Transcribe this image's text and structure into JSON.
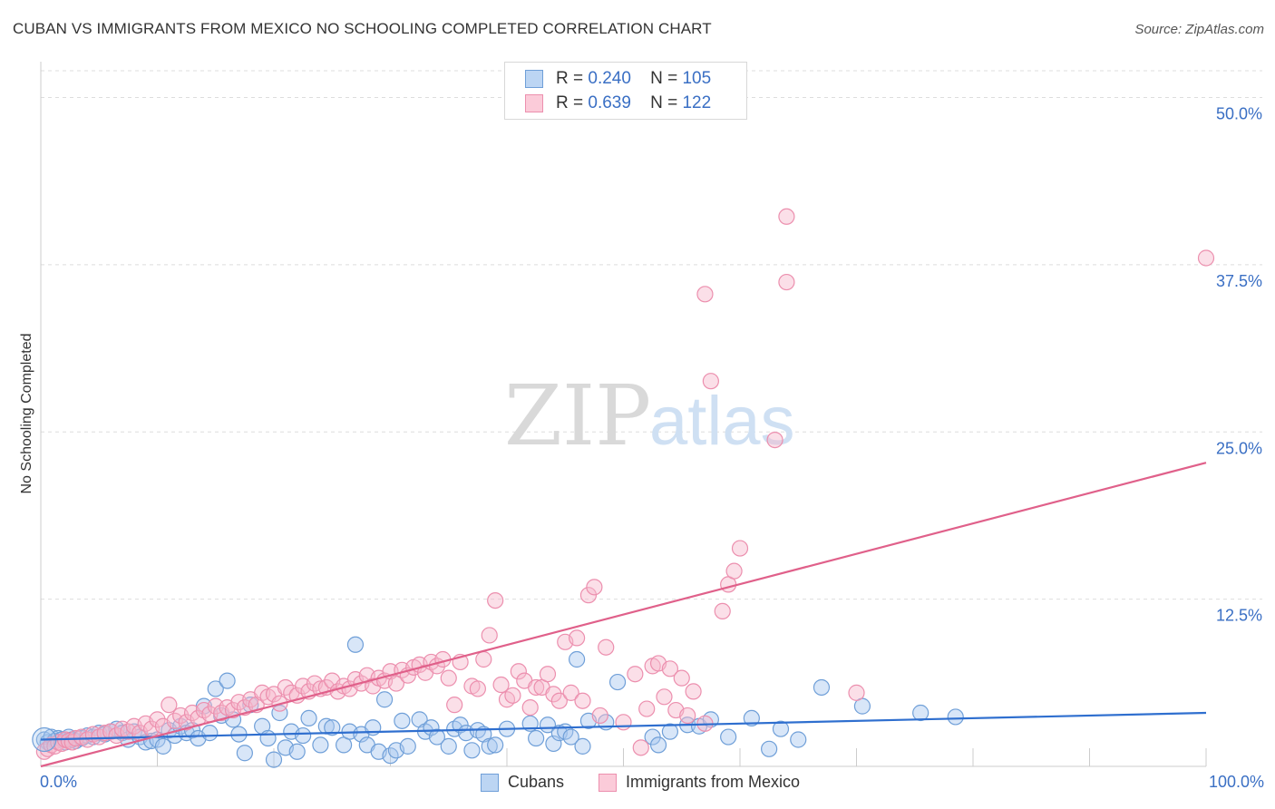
{
  "title": "CUBAN VS IMMIGRANTS FROM MEXICO NO SCHOOLING COMPLETED CORRELATION CHART",
  "source": "Source: ZipAtlas.com",
  "watermark": {
    "zip": "ZIP",
    "atlas": "atlas"
  },
  "legend": {
    "rows": [
      {
        "r_label": "R =",
        "r_value": "0.240",
        "n_label": "N =",
        "n_value": "105"
      },
      {
        "r_label": "R =",
        "r_value": "0.639",
        "n_label": "N =",
        "n_value": "122"
      }
    ]
  },
  "colors": {
    "cubans_fill": "#a8c8ef",
    "cubans_stroke": "#6f9fd8",
    "cubans_line": "#2f6fcf",
    "mexico_fill": "#f6b8cb",
    "mexico_stroke": "#ec8fae",
    "mexico_line": "#e0608a",
    "axis_label": "#3a6fc4",
    "grid": "#dddddd"
  },
  "chart_data": {
    "type": "scatter",
    "title": "CUBAN VS IMMIGRANTS FROM MEXICO NO SCHOOLING COMPLETED CORRELATION CHART",
    "xlabel": "",
    "ylabel": "No Schooling Completed",
    "xlim": [
      0,
      100
    ],
    "ylim": [
      0,
      52
    ],
    "x_tick_labels": [
      "0.0%",
      "100.0%"
    ],
    "y_ticks": [
      12.5,
      25.0,
      37.5,
      50.0
    ],
    "y_tick_labels": [
      "12.5%",
      "25.0%",
      "37.5%",
      "50.0%"
    ],
    "grid": true,
    "series": [
      {
        "name": "Cubans",
        "R": 0.24,
        "N": 105,
        "trend": {
          "x": [
            0,
            100
          ],
          "y": [
            2.0,
            4.0
          ]
        },
        "points": [
          [
            0.3,
            2.0
          ],
          [
            0.6,
            1.8
          ],
          [
            0.9,
            2.2
          ],
          [
            1.2,
            1.9
          ],
          [
            1.5,
            2.1
          ],
          [
            1.8,
            2.0
          ],
          [
            2.1,
            1.8
          ],
          [
            2.4,
            2.2
          ],
          [
            2.7,
            2.0
          ],
          [
            3.0,
            1.9
          ],
          [
            3.5,
            2.1
          ],
          [
            4.0,
            2.3
          ],
          [
            4.5,
            2.2
          ],
          [
            5.0,
            2.5
          ],
          [
            5.5,
            2.4
          ],
          [
            6.0,
            2.6
          ],
          [
            6.5,
            2.8
          ],
          [
            7.0,
            2.5
          ],
          [
            7.5,
            2.0
          ],
          [
            8.0,
            2.6
          ],
          [
            8.5,
            2.2
          ],
          [
            9.0,
            1.8
          ],
          [
            9.5,
            1.9
          ],
          [
            10.0,
            2.0
          ],
          [
            10.5,
            1.5
          ],
          [
            11.0,
            2.7
          ],
          [
            11.5,
            2.3
          ],
          [
            12.0,
            3.0
          ],
          [
            12.5,
            2.5
          ],
          [
            13.0,
            2.7
          ],
          [
            13.5,
            2.1
          ],
          [
            14.0,
            4.5
          ],
          [
            14.5,
            2.5
          ],
          [
            15.0,
            5.8
          ],
          [
            15.5,
            3.8
          ],
          [
            16.0,
            6.4
          ],
          [
            16.5,
            3.5
          ],
          [
            17.0,
            2.4
          ],
          [
            17.5,
            1.0
          ],
          [
            18.0,
            4.6
          ],
          [
            19.0,
            3.0
          ],
          [
            19.5,
            2.1
          ],
          [
            20.0,
            0.5
          ],
          [
            20.5,
            4.0
          ],
          [
            21.0,
            1.4
          ],
          [
            21.5,
            2.6
          ],
          [
            22.0,
            1.1
          ],
          [
            22.5,
            2.3
          ],
          [
            23.0,
            3.6
          ],
          [
            24.0,
            1.6
          ],
          [
            24.5,
            3.0
          ],
          [
            25.0,
            2.9
          ],
          [
            26.0,
            1.6
          ],
          [
            26.5,
            2.6
          ],
          [
            27.0,
            9.1
          ],
          [
            27.5,
            2.4
          ],
          [
            28.0,
            1.6
          ],
          [
            28.5,
            2.9
          ],
          [
            29.0,
            1.1
          ],
          [
            29.5,
            5.0
          ],
          [
            30.0,
            0.8
          ],
          [
            30.5,
            1.2
          ],
          [
            31.0,
            3.4
          ],
          [
            31.5,
            1.5
          ],
          [
            32.5,
            3.5
          ],
          [
            33.0,
            2.6
          ],
          [
            33.5,
            2.9
          ],
          [
            34.0,
            2.2
          ],
          [
            35.0,
            1.5
          ],
          [
            35.5,
            2.8
          ],
          [
            36.0,
            3.1
          ],
          [
            36.5,
            2.5
          ],
          [
            37.0,
            1.2
          ],
          [
            37.5,
            2.7
          ],
          [
            38.0,
            2.4
          ],
          [
            38.5,
            1.5
          ],
          [
            39.0,
            1.6
          ],
          [
            40.0,
            2.8
          ],
          [
            42.0,
            3.2
          ],
          [
            42.5,
            2.1
          ],
          [
            43.5,
            3.1
          ],
          [
            44.0,
            1.7
          ],
          [
            44.5,
            2.5
          ],
          [
            45.0,
            2.6
          ],
          [
            45.5,
            2.2
          ],
          [
            46.0,
            8.0
          ],
          [
            46.5,
            1.5
          ],
          [
            47.0,
            3.4
          ],
          [
            48.5,
            3.3
          ],
          [
            49.5,
            6.3
          ],
          [
            52.5,
            2.2
          ],
          [
            53.0,
            1.6
          ],
          [
            54.0,
            2.6
          ],
          [
            55.5,
            3.1
          ],
          [
            56.5,
            3.0
          ],
          [
            57.5,
            3.5
          ],
          [
            59.0,
            2.2
          ],
          [
            61.0,
            3.6
          ],
          [
            62.5,
            1.3
          ],
          [
            63.5,
            2.8
          ],
          [
            65.0,
            2.0
          ],
          [
            67.0,
            5.9
          ],
          [
            70.5,
            4.5
          ],
          [
            75.5,
            4.0
          ],
          [
            78.5,
            3.7
          ]
        ]
      },
      {
        "name": "Immigrants from Mexico",
        "R": 0.639,
        "N": 122,
        "trend": {
          "x": [
            0,
            100
          ],
          "y": [
            0.0,
            22.7
          ]
        },
        "points": [
          [
            0.3,
            1.1
          ],
          [
            0.6,
            1.3
          ],
          [
            0.9,
            1.6
          ],
          [
            1.2,
            1.5
          ],
          [
            1.5,
            1.8
          ],
          [
            1.8,
            1.7
          ],
          [
            2.1,
            2.0
          ],
          [
            2.4,
            1.9
          ],
          [
            2.7,
            1.8
          ],
          [
            3.0,
            2.1
          ],
          [
            3.5,
            2.2
          ],
          [
            4.0,
            2.0
          ],
          [
            4.5,
            2.4
          ],
          [
            5.0,
            2.2
          ],
          [
            5.5,
            2.5
          ],
          [
            6.0,
            2.6
          ],
          [
            6.5,
            2.3
          ],
          [
            7.0,
            2.8
          ],
          [
            7.5,
            2.6
          ],
          [
            8.0,
            3.0
          ],
          [
            8.5,
            2.5
          ],
          [
            9.0,
            3.2
          ],
          [
            9.5,
            2.8
          ],
          [
            10.0,
            3.5
          ],
          [
            10.5,
            3.0
          ],
          [
            11.0,
            4.6
          ],
          [
            11.5,
            3.4
          ],
          [
            12.0,
            3.8
          ],
          [
            12.5,
            3.3
          ],
          [
            13.0,
            4.0
          ],
          [
            13.5,
            3.6
          ],
          [
            14.0,
            4.2
          ],
          [
            14.5,
            3.9
          ],
          [
            15.0,
            4.5
          ],
          [
            15.5,
            4.0
          ],
          [
            16.0,
            4.4
          ],
          [
            16.5,
            4.2
          ],
          [
            17.0,
            4.8
          ],
          [
            17.5,
            4.4
          ],
          [
            18.0,
            5.0
          ],
          [
            18.5,
            4.6
          ],
          [
            19.0,
            5.5
          ],
          [
            19.5,
            5.2
          ],
          [
            20.0,
            5.4
          ],
          [
            20.5,
            4.7
          ],
          [
            21.0,
            5.9
          ],
          [
            21.5,
            5.5
          ],
          [
            22.0,
            5.3
          ],
          [
            22.5,
            6.0
          ],
          [
            23.0,
            5.6
          ],
          [
            23.5,
            6.2
          ],
          [
            24.0,
            5.8
          ],
          [
            24.5,
            5.9
          ],
          [
            25.0,
            6.4
          ],
          [
            25.5,
            5.6
          ],
          [
            26.0,
            6.0
          ],
          [
            26.5,
            5.8
          ],
          [
            27.0,
            6.5
          ],
          [
            27.5,
            6.2
          ],
          [
            28.0,
            6.8
          ],
          [
            28.5,
            6.0
          ],
          [
            29.0,
            6.6
          ],
          [
            29.5,
            6.4
          ],
          [
            30.0,
            7.1
          ],
          [
            30.5,
            6.2
          ],
          [
            31.0,
            7.2
          ],
          [
            31.5,
            6.8
          ],
          [
            32.0,
            7.4
          ],
          [
            32.5,
            7.6
          ],
          [
            33.0,
            7.0
          ],
          [
            33.5,
            7.8
          ],
          [
            34.0,
            7.5
          ],
          [
            34.5,
            8.0
          ],
          [
            35.0,
            6.6
          ],
          [
            35.5,
            4.6
          ],
          [
            36.0,
            7.8
          ],
          [
            37.0,
            6.0
          ],
          [
            37.5,
            5.8
          ],
          [
            38.0,
            8.0
          ],
          [
            38.5,
            9.8
          ],
          [
            39.0,
            12.4
          ],
          [
            39.5,
            6.1
          ],
          [
            40.0,
            5.0
          ],
          [
            40.5,
            5.3
          ],
          [
            41.0,
            7.1
          ],
          [
            41.5,
            6.4
          ],
          [
            42.0,
            4.4
          ],
          [
            42.5,
            5.9
          ],
          [
            43.0,
            5.9
          ],
          [
            43.5,
            6.9
          ],
          [
            44.0,
            5.4
          ],
          [
            44.5,
            4.9
          ],
          [
            45.0,
            9.3
          ],
          [
            45.5,
            5.5
          ],
          [
            46.0,
            9.6
          ],
          [
            46.5,
            4.9
          ],
          [
            47.0,
            12.8
          ],
          [
            47.5,
            13.4
          ],
          [
            48.0,
            3.8
          ],
          [
            48.5,
            8.9
          ],
          [
            50.0,
            3.3
          ],
          [
            51.0,
            6.9
          ],
          [
            51.5,
            1.4
          ],
          [
            52.0,
            4.3
          ],
          [
            52.5,
            7.5
          ],
          [
            53.0,
            7.7
          ],
          [
            53.5,
            5.2
          ],
          [
            54.0,
            7.3
          ],
          [
            54.5,
            4.2
          ],
          [
            55.0,
            6.6
          ],
          [
            55.5,
            3.8
          ],
          [
            56.0,
            5.6
          ],
          [
            57.0,
            3.2
          ],
          [
            58.5,
            11.6
          ],
          [
            59.0,
            13.6
          ],
          [
            59.5,
            14.6
          ],
          [
            60.0,
            16.3
          ],
          [
            63.0,
            24.4
          ],
          [
            64.0,
            41.1
          ],
          [
            70.0,
            5.5
          ],
          [
            57.5,
            28.8
          ],
          [
            57.0,
            35.3
          ],
          [
            64.0,
            36.2
          ],
          [
            100.0,
            38.0
          ]
        ]
      }
    ]
  },
  "bottom_legend": [
    "Cubans",
    "Immigrants from Mexico"
  ]
}
